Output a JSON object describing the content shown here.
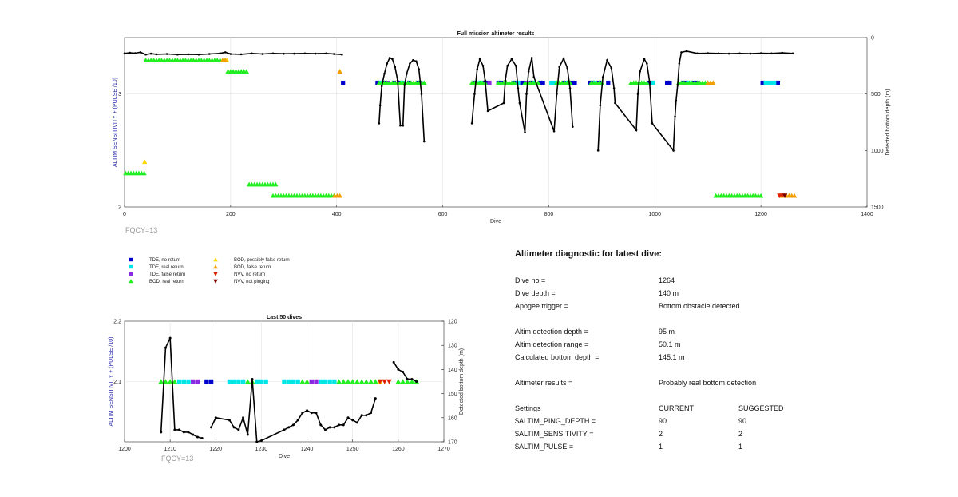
{
  "chart_data": [
    {
      "type": "scatter",
      "title": "Full mission altimeter results",
      "xlabel": "Dive",
      "ylabel": "ALTIM SENSITIVITY + (PULSE /10)",
      "y2label": "Detected bottom depth (m)",
      "xlim": [
        0,
        1400
      ],
      "ylim": [
        2,
        3.5
      ],
      "y2lim": [
        0,
        1500
      ],
      "xticks": [
        "0",
        "200",
        "400",
        "600",
        "800",
        "1000",
        "1200",
        "1400"
      ],
      "yticks": [
        "2",
        "3"
      ],
      "y2ticks": [
        "0",
        "500",
        "1000",
        "1500"
      ],
      "grid": true,
      "annotation": "FQCY=13",
      "markers": [
        {
          "name": "TDE, no return",
          "y": 3.1,
          "ranges": [
            [
              412,
              414
            ],
            [
              477,
              483
            ],
            [
              490,
              494
            ],
            [
              508,
              512
            ],
            [
              520,
              523
            ],
            [
              537,
              541
            ],
            [
              553,
              562
            ],
            [
              661,
              665
            ],
            [
              680,
              686
            ],
            [
              705,
              712
            ],
            [
              735,
              741
            ],
            [
              750,
              754
            ],
            [
              767,
              771
            ],
            [
              784,
              790
            ],
            [
              829,
              833
            ],
            [
              844,
              849
            ],
            [
              878,
              884
            ],
            [
              895,
              899
            ],
            [
              912,
              916
            ],
            [
              990,
              995
            ],
            [
              1023,
              1029
            ],
            [
              1053,
              1060
            ],
            [
              1073,
              1078
            ],
            [
              1203,
              1206
            ],
            [
              1232,
              1235
            ]
          ]
        },
        {
          "name": "TDE, real return",
          "y": 3.1,
          "ranges": [
            [
              484,
              488
            ],
            [
              524,
              528
            ],
            [
              671,
              675
            ],
            [
              742,
              746
            ],
            [
              772,
              776
            ],
            [
              805,
              812
            ],
            [
              836,
              840
            ],
            [
              887,
              891
            ],
            [
              996,
              1000
            ],
            [
              1063,
              1067
            ],
            [
              1209,
              1220
            ],
            [
              1225,
              1228
            ]
          ]
        },
        {
          "name": "TDE, false return",
          "y": 3.1,
          "ranges": [
            [
              497,
              500
            ],
            [
              688,
              690
            ],
            [
              759,
              761
            ]
          ]
        },
        {
          "name": "BOD, real return",
          "y": 3.3,
          "ranges": [
            [
              40,
              185
            ]
          ]
        },
        {
          "name": "BOD, real return",
          "y": 3.2,
          "ranges": [
            [
              195,
              230
            ]
          ]
        },
        {
          "name": "BOD, real return",
          "y": 3.1,
          "ranges": [
            [
              480,
              525
            ],
            [
              530,
              565
            ],
            [
              655,
              680
            ],
            [
              705,
              735
            ],
            [
              755,
              780
            ],
            [
              815,
              830
            ],
            [
              825,
              840
            ],
            [
              880,
              900
            ],
            [
              955,
              985
            ],
            [
              965,
              975
            ],
            [
              1045,
              1100
            ]
          ]
        },
        {
          "name": "BOD, real return",
          "y": 2.3,
          "ranges": [
            [
              2,
              38
            ]
          ]
        },
        {
          "name": "BOD, real return",
          "y": 2.2,
          "ranges": [
            [
              235,
              285
            ]
          ]
        },
        {
          "name": "BOD, real return",
          "y": 2.1,
          "ranges": [
            [
              280,
              395
            ],
            [
              1115,
              1200
            ]
          ]
        },
        {
          "name": "BOD, possibly false return",
          "y": 3.3,
          "ranges": [
            [
              188,
              193
            ]
          ]
        },
        {
          "name": "BOD, possibly false return",
          "y": 2.4,
          "ranges": [
            [
              38,
              42
            ]
          ]
        },
        {
          "name": "BOD, false return",
          "y": 3.3,
          "ranges": [
            [
              185,
              190
            ]
          ]
        },
        {
          "name": "BOD, false return",
          "y": 3.2,
          "ranges": [
            [
              406,
              410
            ]
          ]
        },
        {
          "name": "BOD, false return",
          "y": 3.1,
          "ranges": [
            [
              1100,
              1110
            ]
          ]
        },
        {
          "name": "BOD, false return",
          "y": 2.1,
          "ranges": [
            [
              396,
              410
            ],
            [
              1238,
              1264
            ]
          ]
        },
        {
          "name": "NVV, no return",
          "y": 2.1,
          "ranges": [
            [
              1235,
              1240
            ]
          ]
        },
        {
          "name": "NVV, not pinging",
          "y": 2.1,
          "ranges": [
            [
              1245,
              1248
            ]
          ]
        }
      ],
      "bottom_depth_m": [
        [
          0,
          140
        ],
        [
          10,
          135
        ],
        [
          20,
          138
        ],
        [
          30,
          130
        ],
        [
          40,
          150
        ],
        [
          50,
          142
        ],
        [
          60,
          148
        ],
        [
          80,
          145
        ],
        [
          100,
          150
        ],
        [
          120,
          148
        ],
        [
          140,
          150
        ],
        [
          160,
          145
        ],
        [
          180,
          140
        ],
        [
          190,
          130
        ],
        [
          200,
          145
        ],
        [
          220,
          148
        ],
        [
          240,
          140
        ],
        [
          260,
          145
        ],
        [
          280,
          140
        ],
        [
          300,
          143
        ],
        [
          320,
          142
        ],
        [
          340,
          140
        ],
        [
          360,
          142
        ],
        [
          380,
          140
        ],
        [
          395,
          145
        ],
        [
          410,
          150
        ],
        [
          480,
          760
        ],
        [
          482,
          600
        ],
        [
          485,
          430
        ],
        [
          490,
          320
        ],
        [
          495,
          230
        ],
        [
          500,
          180
        ],
        [
          505,
          190
        ],
        [
          510,
          260
        ],
        [
          515,
          380
        ],
        [
          520,
          780
        ],
        [
          525,
          780
        ],
        [
          528,
          420
        ],
        [
          532,
          320
        ],
        [
          538,
          230
        ],
        [
          544,
          200
        ],
        [
          550,
          210
        ],
        [
          555,
          280
        ],
        [
          560,
          500
        ],
        [
          565,
          920
        ],
        [
          655,
          760
        ],
        [
          660,
          500
        ],
        [
          665,
          280
        ],
        [
          670,
          190
        ],
        [
          676,
          250
        ],
        [
          680,
          380
        ],
        [
          685,
          650
        ],
        [
          715,
          580
        ],
        [
          718,
          380
        ],
        [
          722,
          250
        ],
        [
          730,
          190
        ],
        [
          738,
          250
        ],
        [
          742,
          450
        ],
        [
          745,
          580
        ],
        [
          755,
          840
        ],
        [
          758,
          500
        ],
        [
          762,
          300
        ],
        [
          768,
          180
        ],
        [
          772,
          350
        ],
        [
          810,
          830
        ],
        [
          815,
          500
        ],
        [
          820,
          260
        ],
        [
          828,
          185
        ],
        [
          835,
          270
        ],
        [
          840,
          450
        ],
        [
          845,
          790
        ],
        [
          893,
          1000
        ],
        [
          897,
          600
        ],
        [
          902,
          350
        ],
        [
          910,
          200
        ],
        [
          918,
          270
        ],
        [
          923,
          450
        ],
        [
          925,
          580
        ],
        [
          965,
          820
        ],
        [
          968,
          500
        ],
        [
          972,
          300
        ],
        [
          980,
          190
        ],
        [
          985,
          230
        ],
        [
          990,
          390
        ],
        [
          995,
          760
        ],
        [
          1035,
          1000
        ],
        [
          1038,
          700
        ],
        [
          1040,
          560
        ],
        [
          1043,
          420
        ],
        [
          1046,
          230
        ],
        [
          1050,
          130
        ],
        [
          1060,
          120
        ],
        [
          1080,
          140
        ],
        [
          1100,
          138
        ],
        [
          1120,
          140
        ],
        [
          1140,
          142
        ],
        [
          1160,
          140
        ],
        [
          1180,
          142
        ],
        [
          1200,
          138
        ],
        [
          1220,
          140
        ],
        [
          1240,
          135
        ],
        [
          1260,
          140
        ]
      ]
    },
    {
      "type": "scatter",
      "title": "Last 50 dives",
      "xlabel": "Dive",
      "ylabel": "ALTIM SENSITIVITY + (PULSE /10)",
      "y2label": "Detected bottom depth (m)",
      "xlim": [
        1200,
        1270
      ],
      "ylim": [
        2,
        2.2
      ],
      "y2lim": [
        120,
        170
      ],
      "xticks": [
        "1200",
        "1210",
        "1220",
        "1230",
        "1240",
        "1250",
        "1260",
        "1270"
      ],
      "yticks": [
        "2.1",
        "2.2"
      ],
      "y2ticks": [
        "120",
        "130",
        "140",
        "150",
        "160",
        "170"
      ],
      "grid": true,
      "annotation": "FQCY=13",
      "markers": [
        {
          "name": "BOD, real return",
          "y": 2.1,
          "ranges": [
            [
              1208,
              1211
            ],
            [
              1227,
              1229
            ],
            [
              1239,
              1240
            ],
            [
              1247,
              1255
            ],
            [
              1260,
              1264
            ]
          ]
        },
        {
          "name": "TDE, real return",
          "y": 2.1,
          "ranges": [
            [
              1212,
              1214
            ],
            [
              1223,
              1226
            ],
            [
              1229,
              1231
            ],
            [
              1235,
              1238
            ],
            [
              1243,
              1246
            ]
          ]
        },
        {
          "name": "TDE, false return",
          "y": 2.1,
          "ranges": [
            [
              1215,
              1216
            ],
            [
              1241,
              1242
            ]
          ]
        },
        {
          "name": "TDE, no return",
          "y": 2.1,
          "ranges": [
            [
              1218,
              1219
            ]
          ]
        },
        {
          "name": "BOD, possibly false return",
          "y": 2.1,
          "ranges": [
            [
              1256,
              1256
            ]
          ]
        },
        {
          "name": "NVV, no return",
          "y": 2.1,
          "ranges": [
            [
              1256,
              1258
            ]
          ]
        }
      ],
      "bottom_depth_m": [
        [
          [
            1208,
            166
          ],
          [
            1209,
            131
          ],
          [
            1210,
            127
          ],
          [
            1211,
            165
          ],
          [
            1212,
            165
          ],
          [
            1213,
            166
          ],
          [
            1214,
            166
          ],
          [
            1215,
            167
          ],
          [
            1216,
            168
          ],
          [
            1217,
            168.5
          ]
        ],
        [
          [
            1219,
            164
          ],
          [
            1220,
            160
          ],
          [
            1223,
            161
          ],
          [
            1224,
            164
          ],
          [
            1225,
            165
          ],
          [
            1226,
            160
          ],
          [
            1227,
            167
          ],
          [
            1228,
            144
          ],
          [
            1229,
            170
          ],
          [
            1230,
            169.5
          ],
          [
            1235,
            165
          ],
          [
            1236,
            164
          ],
          [
            1237,
            163
          ],
          [
            1238,
            161
          ],
          [
            1239,
            158
          ],
          [
            1240,
            157
          ],
          [
            1241,
            158
          ],
          [
            1242,
            158
          ],
          [
            1243,
            163
          ],
          [
            1244,
            165
          ],
          [
            1245,
            164
          ],
          [
            1246,
            164
          ],
          [
            1247,
            163
          ],
          [
            1248,
            163
          ],
          [
            1249,
            160
          ],
          [
            1250,
            161
          ],
          [
            1251,
            162
          ],
          [
            1252,
            159
          ],
          [
            1253,
            159
          ],
          [
            1254,
            158
          ],
          [
            1255,
            152
          ]
        ],
        [
          [
            1259,
            137
          ],
          [
            1260,
            140
          ],
          [
            1261,
            141
          ],
          [
            1262,
            144
          ],
          [
            1263,
            144
          ],
          [
            1264,
            145
          ]
        ]
      ]
    }
  ],
  "legend": {
    "items": [
      {
        "label": "TDE, no return",
        "shape": "square",
        "color": "#0000cc"
      },
      {
        "label": "TDE, real return",
        "shape": "square",
        "color": "#00e5e5"
      },
      {
        "label": "TDE, false return",
        "shape": "square",
        "color": "#8a2be2"
      },
      {
        "label": "BOD, real return",
        "shape": "triangle-up",
        "color": "#22ee22"
      },
      {
        "label": "BOD, possibly false return",
        "shape": "triangle-up",
        "color": "#ffd700"
      },
      {
        "label": "BOD, false return",
        "shape": "triangle-up",
        "color": "#f0a000"
      },
      {
        "label": "NVV, no return",
        "shape": "triangle-down",
        "color": "#dd2200"
      },
      {
        "label": "NVV, not pinging",
        "shape": "triangle-down",
        "color": "#7a0000"
      }
    ]
  },
  "diagnostic": {
    "title": "Altimeter diagnostic for latest dive:",
    "dive_no": {
      "label": "Dive no =",
      "value": "1264"
    },
    "dive_depth": {
      "label": "Dive depth =",
      "value": "140 m"
    },
    "apogee_trigger": {
      "label": "Apogee trigger =",
      "value": "Bottom obstacle detected"
    },
    "altim_detection_depth": {
      "label": "Altim detection depth =",
      "value": "95 m"
    },
    "altim_detection_range": {
      "label": "Altim detection range =",
      "value": "50.1 m"
    },
    "calculated_bottom_depth": {
      "label": "Calculated bottom depth =",
      "value": "145.1 m"
    },
    "altimeter_results": {
      "label": "Altimeter results =",
      "value": "Probably real bottom detection"
    },
    "settings": {
      "label": "Settings",
      "current": "CURRENT",
      "suggested": "SUGGESTED"
    },
    "ping_depth": {
      "label": "$ALTIM_PING_DEPTH =",
      "current": "90",
      "suggested": "90"
    },
    "sensitivity": {
      "label": "$ALTIM_SENSITIVITY =",
      "current": "2",
      "suggested": "2"
    },
    "pulse": {
      "label": "$ALTIM_PULSE =",
      "current": "1",
      "suggested": "1"
    }
  }
}
